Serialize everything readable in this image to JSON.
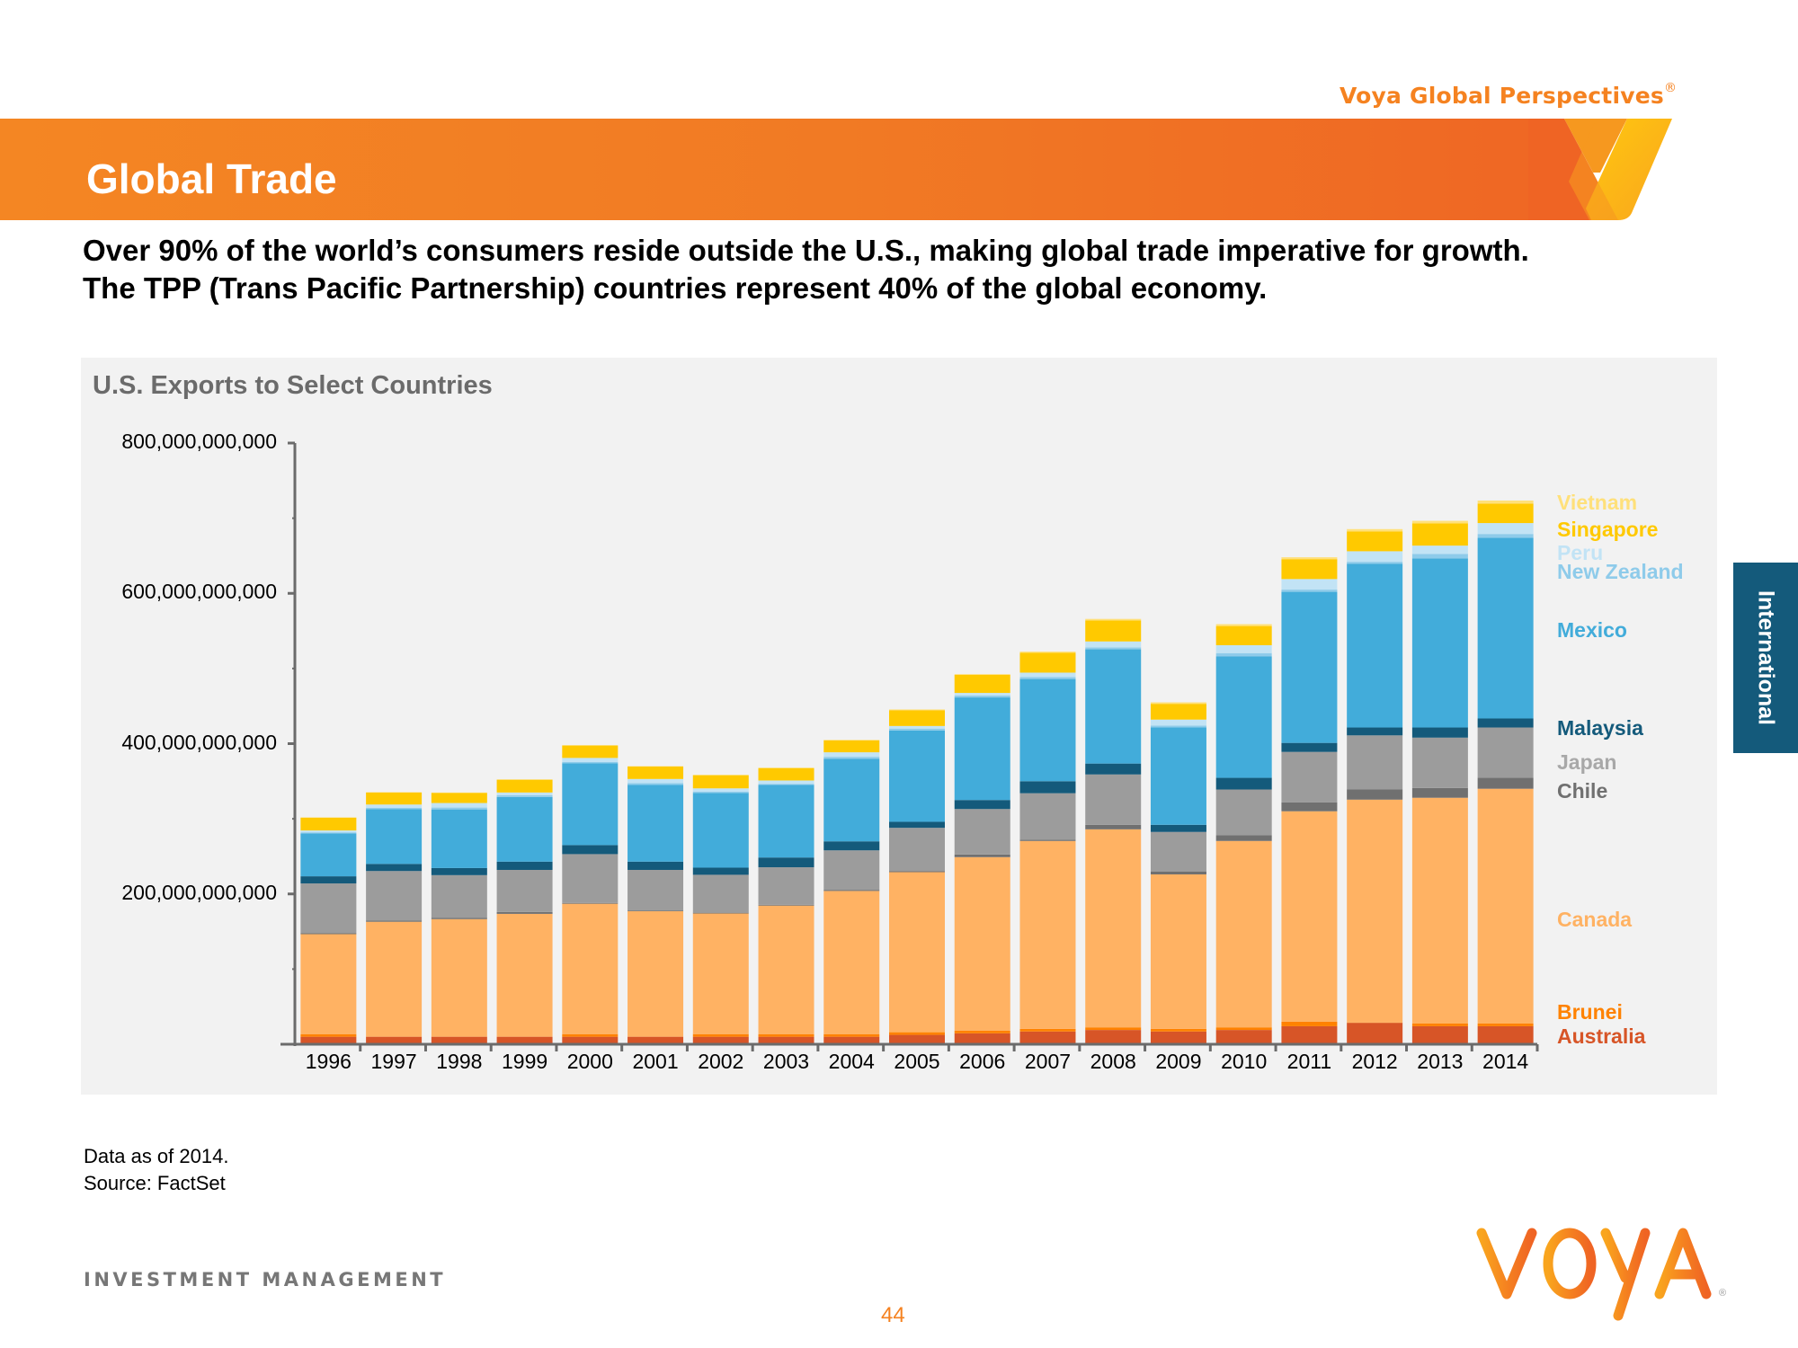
{
  "header": {
    "brand": "Voya Global Perspectives",
    "brand_mark": "®",
    "title": "Global Trade"
  },
  "subtitle": {
    "line1": "Over 90% of the world’s consumers reside outside the U.S., making global trade imperative for growth.",
    "line2": "The TPP (Trans Pacific Partnership) countries represent 40% of the global economy."
  },
  "side_tab": {
    "label": "International"
  },
  "footer": {
    "note": "Data as of  2014.",
    "source": "Source: FactSet",
    "division": "INVESTMENT MANAGEMENT",
    "page_number": "44",
    "logo_text": "VOYA",
    "logo_mark": "®"
  },
  "chart_data": {
    "type": "bar",
    "stacked": true,
    "title": "U.S. Exports to Select Countries",
    "xlabel": "",
    "ylabel": "",
    "units": "USD billions",
    "ylim": [
      0,
      800
    ],
    "y_ticks": [
      200,
      400,
      600,
      800
    ],
    "y_tick_labels": [
      "200,000,000,000",
      "400,000,000,000",
      "600,000,000,000",
      "800,000,000,000"
    ],
    "y_minor_ticks": [
      100,
      300,
      500,
      700
    ],
    "grid": false,
    "legend_position": "right",
    "categories": [
      "1996",
      "1997",
      "1998",
      "1999",
      "2000",
      "2001",
      "2002",
      "2003",
      "2004",
      "2005",
      "2006",
      "2007",
      "2008",
      "2009",
      "2010",
      "2011",
      "2012",
      "2013",
      "2014"
    ],
    "series": [
      {
        "name": "Australia",
        "color": "#D75527",
        "values": [
          10,
          10,
          10,
          10,
          10,
          10,
          10,
          10,
          10,
          12.5,
          14.5,
          17,
          19,
          17,
          19,
          24,
          28.5,
          24,
          24
        ]
      },
      {
        "name": "Brunei",
        "color": "#FF8200",
        "values": [
          3.5,
          0,
          0,
          0,
          3.5,
          0,
          3.5,
          3.5,
          3.5,
          3.5,
          3.5,
          3.5,
          3.5,
          3.5,
          3.5,
          6,
          0.5,
          3.5,
          3.5
        ]
      },
      {
        "name": "Canada",
        "color": "#FFB263",
        "values": [
          133,
          153,
          156.5,
          163.5,
          173.5,
          167,
          160.5,
          171,
          190.5,
          213,
          231,
          250,
          263.5,
          205.5,
          248,
          280,
          296.5,
          300.5,
          312.5
        ]
      },
      {
        "name": "Chile",
        "color": "#707070",
        "values": [
          1.5,
          1.5,
          1.5,
          2.5,
          1,
          1,
          1,
          1,
          1.5,
          1.5,
          3.5,
          1.5,
          6,
          4,
          7.5,
          12,
          13.5,
          13,
          14.5
        ]
      },
      {
        "name": "Japan",
        "color": "#9C9C9C",
        "values": [
          66,
          66,
          57,
          56,
          65,
          54,
          50.5,
          50,
          52.5,
          57.5,
          60.5,
          62,
          67,
          52.5,
          61,
          67,
          72,
          67,
          67
        ]
      },
      {
        "name": "Malaysia",
        "color": "#145A7B",
        "values": [
          9.5,
          9.5,
          9.5,
          11,
          12,
          11,
          9.5,
          13,
          12,
          8,
          12,
          16,
          14.5,
          9.5,
          15.5,
          12,
          10.5,
          13.5,
          12
        ]
      },
      {
        "name": "Mexico",
        "color": "#42ACDA",
        "values": [
          57,
          73,
          78,
          86,
          109,
          102,
          99.5,
          96.5,
          110,
          121.5,
          136.5,
          136,
          152,
          129.5,
          161.5,
          201,
          218,
          225,
          240.5
        ]
      },
      {
        "name": "New Zealand",
        "color": "#8ECBEA",
        "values": [
          1.5,
          1.5,
          2.5,
          2.5,
          1.5,
          2.5,
          1.5,
          1.5,
          2.5,
          2.5,
          2.5,
          2.5,
          2.5,
          2.5,
          4.5,
          3,
          2.5,
          6,
          5
        ]
      },
      {
        "name": "Peru",
        "color": "#C2E3F5",
        "values": [
          2.5,
          4.5,
          6,
          3.5,
          5.5,
          5.5,
          4.5,
          4.5,
          6,
          3.5,
          3.5,
          6,
          8,
          8,
          10.5,
          14,
          14,
          11,
          14.5
        ]
      },
      {
        "name": "Singapore",
        "color": "#FFC900",
        "values": [
          17,
          16,
          13.5,
          17,
          16.5,
          16.5,
          17.5,
          16.5,
          16,
          21,
          24,
          26.5,
          28,
          21,
          25.5,
          26.5,
          26.5,
          29.5,
          26
        ]
      },
      {
        "name": "Vietnam",
        "color": "#FFE07A",
        "values": [
          0.5,
          0.5,
          0.5,
          0.5,
          0.5,
          0.5,
          0.5,
          0.5,
          0.5,
          1,
          1,
          1.5,
          2,
          2,
          2.5,
          2.5,
          3,
          3.5,
          4
        ]
      }
    ],
    "legend": [
      {
        "name": "Vietnam",
        "color": "#FFE07A"
      },
      {
        "name": "Singapore",
        "color": "#FFC900"
      },
      {
        "name": "Peru",
        "color": "#C2E3F5"
      },
      {
        "name": "New Zealand",
        "color": "#8ECBEA"
      },
      {
        "name": "Mexico",
        "color": "#42ACDA"
      },
      {
        "name": "Malaysia",
        "color": "#145A7B"
      },
      {
        "name": "Japan",
        "color": "#A8A8A8"
      },
      {
        "name": "Chile",
        "color": "#707070"
      },
      {
        "name": "Canada",
        "color": "#FFB263"
      },
      {
        "name": "Brunei",
        "color": "#FF8200"
      },
      {
        "name": "Australia",
        "color": "#D75527"
      }
    ]
  }
}
